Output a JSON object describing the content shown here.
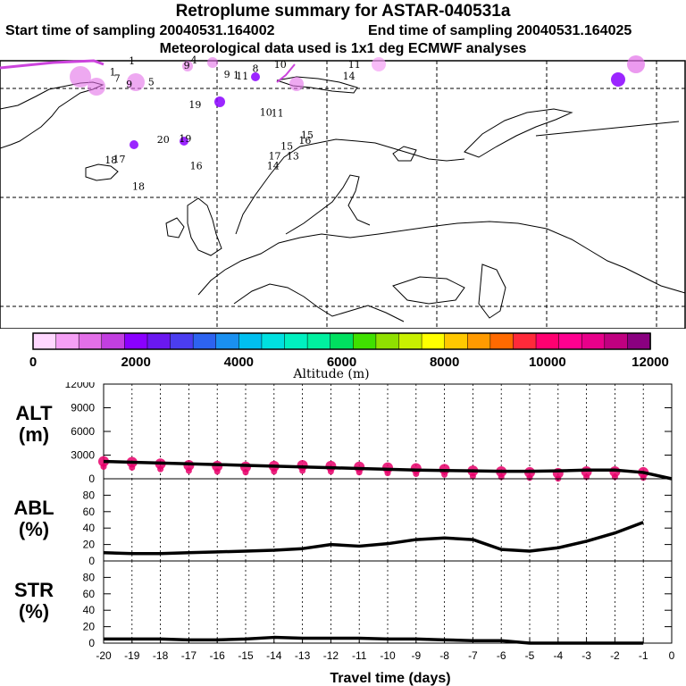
{
  "title": {
    "line1": "Retroplume summary for ASTAR-040531a",
    "line2_left": "Start time of sampling 20040531.164002",
    "line2_right": "End time of sampling 20040531.164025",
    "line3": "Meteorological data used is 1x1 deg ECMWF analyses"
  },
  "map": {
    "labels": [
      {
        "text": "1",
        "lon": -15.5,
        "lat": 77.2,
        "color": "#000000"
      },
      {
        "text": "1",
        "lon": -19.0,
        "lat": 76.2,
        "color": "#000000"
      },
      {
        "text": "7",
        "lon": -18.2,
        "lat": 75.6,
        "color": "#000000"
      },
      {
        "text": "9",
        "lon": -16.0,
        "lat": 75.1,
        "color": "#000000"
      },
      {
        "text": "5",
        "lon": -12.0,
        "lat": 75.3,
        "color": "#000000"
      },
      {
        "text": "9",
        "lon": -5.5,
        "lat": 76.8,
        "color": "#000000"
      },
      {
        "text": "4",
        "lon": -4.2,
        "lat": 77.3,
        "color": "#000000"
      },
      {
        "text": "9",
        "lon": 1.8,
        "lat": 76.0,
        "color": "#000000"
      },
      {
        "text": "1",
        "lon": 3.5,
        "lat": 75.9,
        "color": "#000000"
      },
      {
        "text": "11",
        "lon": 4.6,
        "lat": 75.8,
        "color": "#000000"
      },
      {
        "text": "8",
        "lon": 7.0,
        "lat": 76.5,
        "color": "#000000"
      },
      {
        "text": "10",
        "lon": 11.5,
        "lat": 76.9,
        "color": "#000000"
      },
      {
        "text": "11",
        "lon": 25.0,
        "lat": 76.9,
        "color": "#000000"
      },
      {
        "text": "14",
        "lon": 24.0,
        "lat": 75.8,
        "color": "#000000"
      },
      {
        "text": "19",
        "lon": -4.0,
        "lat": 73.2,
        "color": "#000000"
      },
      {
        "text": "10",
        "lon": 8.9,
        "lat": 72.5,
        "color": "#000000"
      },
      {
        "text": "11",
        "lon": 11.0,
        "lat": 72.4,
        "color": "#000000"
      },
      {
        "text": "20",
        "lon": -9.8,
        "lat": 70.0,
        "color": "#000000"
      },
      {
        "text": "19",
        "lon": -5.8,
        "lat": 70.1,
        "color": "#000000"
      },
      {
        "text": "16",
        "lon": -3.8,
        "lat": 67.6,
        "color": "#000000"
      },
      {
        "text": "16",
        "lon": 16.0,
        "lat": 69.9,
        "color": "#000000"
      },
      {
        "text": "15",
        "lon": 16.4,
        "lat": 70.4,
        "color": "#000000"
      },
      {
        "text": "15",
        "lon": 12.7,
        "lat": 69.4,
        "color": "#000000"
      },
      {
        "text": "13",
        "lon": 13.8,
        "lat": 68.5,
        "color": "#000000"
      },
      {
        "text": "17",
        "lon": 10.5,
        "lat": 68.5,
        "color": "#000000"
      },
      {
        "text": "14",
        "lon": 10.2,
        "lat": 67.6,
        "color": "#000000"
      },
      {
        "text": "18",
        "lon": -19.3,
        "lat": 68.1,
        "color": "#000000"
      },
      {
        "text": "17",
        "lon": -17.8,
        "lat": 68.2,
        "color": "#000000"
      },
      {
        "text": "18",
        "lon": -14.3,
        "lat": 65.7,
        "color": "#000000"
      }
    ]
  },
  "colorbar": {
    "label": "Altitude (m)",
    "ticks": [
      "0",
      "2000",
      "4000",
      "6000",
      "8000",
      "10000",
      "12000"
    ],
    "colors": [
      "#ffd7ff",
      "#f5a0f5",
      "#e36fe8",
      "#c23fe0",
      "#8a00ff",
      "#6a18f0",
      "#4b3df0",
      "#2d63f0",
      "#1a90f0",
      "#00bff0",
      "#00e0e0",
      "#00f0c0",
      "#00f0a0",
      "#00e060",
      "#40e000",
      "#90e000",
      "#c8f000",
      "#ffff00",
      "#ffc800",
      "#ff9a00",
      "#ff6a00",
      "#ff2a3a",
      "#ff0070",
      "#ff0090",
      "#e8008a",
      "#c00080",
      "#8a0080"
    ]
  },
  "chart_data": [
    {
      "type": "line",
      "name": "ALT",
      "ylabel": "ALT (m)",
      "ylim": [
        0,
        12000
      ],
      "yticks": [
        "0",
        "3000",
        "6000",
        "9000",
        "12000"
      ],
      "x": [
        -20,
        -19,
        -18,
        -17,
        -16,
        -15,
        -14,
        -13,
        -12,
        -11,
        -10,
        -9,
        -8,
        -7,
        -6,
        -5,
        -4,
        -3,
        -2,
        -1,
        0
      ],
      "values": [
        2200,
        2100,
        2000,
        1900,
        1800,
        1700,
        1600,
        1500,
        1400,
        1300,
        1200,
        1100,
        1050,
        1000,
        950,
        950,
        1000,
        1100,
        1100,
        800,
        0
      ],
      "points": [
        2200,
        2100,
        1900,
        1700,
        1600,
        1500,
        1600,
        1700,
        1600,
        1500,
        1400,
        1300,
        1200,
        1000,
        900,
        800,
        700,
        900,
        900,
        800
      ]
    },
    {
      "type": "line",
      "name": "ABL",
      "ylabel": "ABL (%)",
      "ylim": [
        0,
        100
      ],
      "yticks": [
        "0",
        "20",
        "40",
        "60",
        "80"
      ],
      "x": [
        -20,
        -19,
        -18,
        -17,
        -16,
        -15,
        -14,
        -13,
        -12,
        -11,
        -10,
        -9,
        -8,
        -7,
        -6,
        -5,
        -4,
        -3,
        -2,
        -1
      ],
      "values": [
        10,
        9,
        9,
        10,
        11,
        12,
        13,
        15,
        20,
        18,
        21,
        26,
        28,
        26,
        14,
        12,
        16,
        24,
        34,
        47
      ]
    },
    {
      "type": "line",
      "name": "STR",
      "ylabel": "STR (%)",
      "ylim": [
        0,
        100
      ],
      "yticks": [
        "0",
        "20",
        "40",
        "60",
        "80"
      ],
      "x": [
        -20,
        -19,
        -18,
        -17,
        -16,
        -15,
        -14,
        -13,
        -12,
        -11,
        -10,
        -9,
        -8,
        -7,
        -6,
        -5,
        -4,
        -3,
        -2,
        -1
      ],
      "values": [
        5,
        5,
        5,
        4,
        4,
        5,
        7,
        6,
        6,
        6,
        5,
        5,
        4,
        3,
        3,
        0,
        0,
        0,
        0,
        0
      ],
      "xticks": [
        "-20",
        "-19",
        "-18",
        "-17",
        "-16",
        "-15",
        "-14",
        "-13",
        "-12",
        "-11",
        "-10",
        "-9",
        "-8",
        "-7",
        "-6",
        "-5",
        "-4",
        "-3",
        "-2",
        "-1",
        "0"
      ],
      "xlabel": "Travel time (days)"
    }
  ]
}
